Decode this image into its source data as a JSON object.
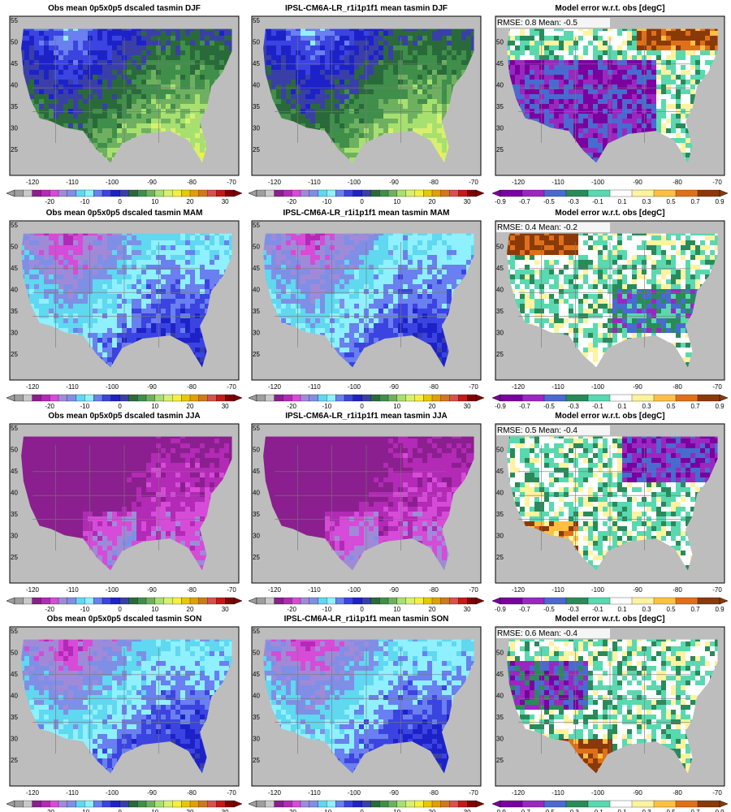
{
  "rows": [
    {
      "obs_title": "Obs mean 0p5x0p5 dscaled tasmin DJF",
      "model_title": "IPSL-CM6A-LR_r1i1p1f1 mean tasmin DJF",
      "error_title": "Model error w.r.t. obs [degC]",
      "rmse_label": "RMSE: 0.8  Mean: -0.5"
    },
    {
      "obs_title": "Obs mean 0p5x0p5 dscaled tasmin MAM",
      "model_title": "IPSL-CM6A-LR_r1i1p1f1 mean tasmin MAM",
      "error_title": "Model error w.r.t. obs [degC]",
      "rmse_label": "RMSE: 0.4  Mean: -0.2"
    },
    {
      "obs_title": "Obs mean 0p5x0p5 dscaled tasmin JJA",
      "model_title": "IPSL-CM6A-LR_r1i1p1f1 mean tasmin JJA",
      "error_title": "Model error w.r.t. obs [degC]",
      "rmse_label": "RMSE: 0.5  Mean: -0.4"
    },
    {
      "obs_title": "Obs mean 0p5x0p5 dscaled tasmin SON",
      "model_title": "IPSL-CM6A-LR_r1i1p1f1 mean tasmin SON",
      "error_title": "Model error w.r.t. obs [degC]",
      "rmse_label": "RMSE: 0.6  Mean: -0.4"
    }
  ],
  "lon_ticks": [
    "-120",
    "-110",
    "-100",
    "-90",
    "-80",
    "-70"
  ],
  "lat_ticks": [
    "55",
    "50",
    "45",
    "40",
    "35",
    "30",
    "25"
  ],
  "temp_colorbar": {
    "labels": [
      "-20",
      "-10",
      "0",
      "10",
      "20",
      "30"
    ],
    "colors": [
      "#9e9e9e",
      "#c9c9c9",
      "#8b1f8f",
      "#b22ab5",
      "#d64bd8",
      "#a08ad8",
      "#7f8fe6",
      "#5fd8f0",
      "#8ff0ff",
      "#6a7ff0",
      "#3b44e0",
      "#1d22c8",
      "#3a3fa8",
      "#2a6a3a",
      "#3f8f4a",
      "#6fb060",
      "#a8e070",
      "#d8f070",
      "#f5f040",
      "#e8c800",
      "#e0a000",
      "#d07820",
      "#d85050",
      "#c81818",
      "#800000"
    ]
  },
  "error_colorbar": {
    "labels": [
      "-0.9",
      "-0.7",
      "-0.5",
      "-0.3",
      "-0.1",
      "0.1",
      "0.3",
      "0.5",
      "0.7",
      "0.9"
    ],
    "colors": [
      "#7a00a0",
      "#9a28c0",
      "#4a6ad0",
      "#2a8a5a",
      "#5ad8b0",
      "#ffffff",
      "#fff3a0",
      "#ffc040",
      "#e07018",
      "#8a3a08"
    ]
  },
  "colors": {
    "land_bg": "#bdbdbd",
    "frame": "#000000",
    "borders": "#777777"
  }
}
